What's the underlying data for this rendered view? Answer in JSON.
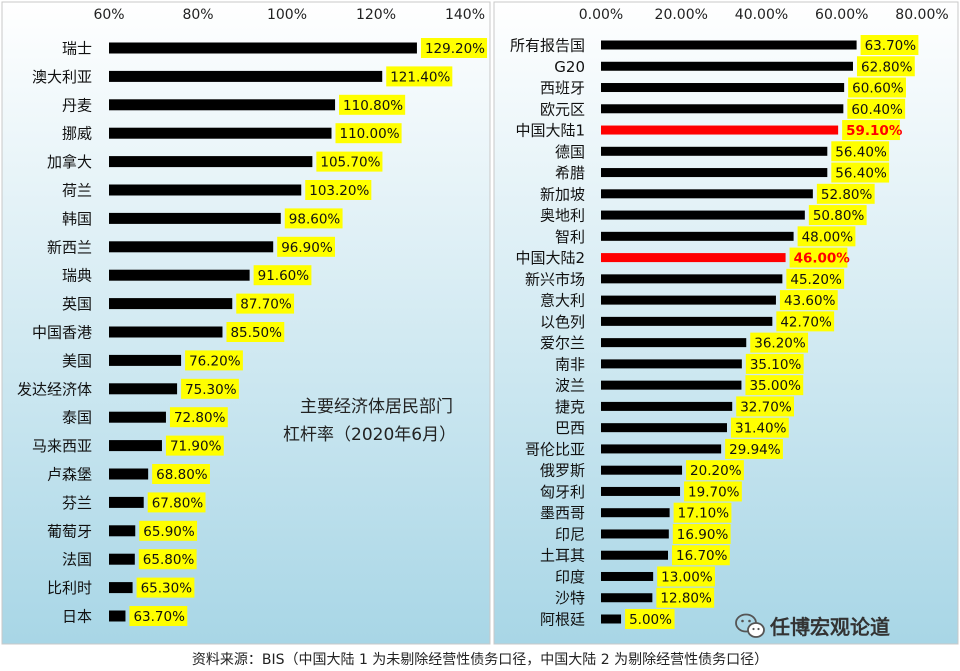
{
  "chart_data": [
    {
      "type": "bar",
      "orientation": "horizontal",
      "title": "主要经济体居民部门杠杆率（2020年6月）",
      "annotation_lines": [
        "主要经济体居民部门",
        "杠杆率（2020年6月）"
      ],
      "xlim": [
        60,
        140
      ],
      "ticks": [
        60,
        80,
        100,
        120,
        140
      ],
      "tick_labels": [
        "60%",
        "80%",
        "100%",
        "120%",
        "140%"
      ],
      "categories": [
        "瑞士",
        "澳大利亚",
        "丹麦",
        "挪威",
        "加拿大",
        "荷兰",
        "韩国",
        "新西兰",
        "瑞典",
        "英国",
        "中国香港",
        "美国",
        "发达经济体",
        "泰国",
        "马来西亚",
        "卢森堡",
        "芬兰",
        "葡萄牙",
        "法国",
        "比利时",
        "日本"
      ],
      "values": [
        129.2,
        121.4,
        110.8,
        110.0,
        105.7,
        103.2,
        98.6,
        96.9,
        91.6,
        87.7,
        85.5,
        76.2,
        75.3,
        72.8,
        71.9,
        68.8,
        67.8,
        65.9,
        65.8,
        65.3,
        63.7
      ],
      "data_labels": [
        "129.20%",
        "121.40%",
        "110.80%",
        "110.00%",
        "105.70%",
        "103.20%",
        "98.60%",
        "96.90%",
        "91.60%",
        "87.70%",
        "85.50%",
        "76.20%",
        "75.30%",
        "72.80%",
        "71.90%",
        "68.80%",
        "67.80%",
        "65.90%",
        "65.80%",
        "65.30%",
        "63.70%"
      ],
      "highlight": []
    },
    {
      "type": "bar",
      "orientation": "horizontal",
      "xlim": [
        0,
        80
      ],
      "ticks": [
        0,
        20,
        40,
        60,
        80
      ],
      "tick_labels": [
        "0.00%",
        "20.00%",
        "40.00%",
        "60.00%",
        "80.00%"
      ],
      "categories": [
        "所有报告国",
        "G20",
        "西班牙",
        "欧元区",
        "中国大陆1",
        "德国",
        "希腊",
        "新加坡",
        "奥地利",
        "智利",
        "中国大陆2",
        "新兴市场",
        "意大利",
        "以色列",
        "爱尔兰",
        "南非",
        "波兰",
        "捷克",
        "巴西",
        "哥伦比亚",
        "俄罗斯",
        "匈牙利",
        "墨西哥",
        "印尼",
        "土耳其",
        "印度",
        "沙特",
        "阿根廷"
      ],
      "values": [
        63.7,
        62.8,
        60.6,
        60.4,
        59.1,
        56.4,
        56.4,
        52.8,
        50.8,
        48.0,
        46.0,
        45.2,
        43.6,
        42.7,
        36.2,
        35.1,
        35.0,
        32.7,
        31.4,
        29.94,
        20.2,
        19.7,
        17.1,
        16.9,
        16.7,
        13.0,
        12.8,
        5.0
      ],
      "data_labels": [
        "63.70%",
        "62.80%",
        "60.60%",
        "60.40%",
        "59.10%",
        "56.40%",
        "56.40%",
        "52.80%",
        "50.80%",
        "48.00%",
        "46.00%",
        "45.20%",
        "43.60%",
        "42.70%",
        "36.20%",
        "35.10%",
        "35.00%",
        "32.70%",
        "31.40%",
        "29.94%",
        "20.20%",
        "19.70%",
        "17.10%",
        "16.90%",
        "16.70%",
        "13.00%",
        "12.80%",
        "5.00%"
      ],
      "highlight": [
        "中国大陆1",
        "中国大陆2"
      ]
    }
  ],
  "colors": {
    "bar": "#000000",
    "bar_highlight": "#ff0000",
    "label_bg": "#ffff00",
    "label_highlight_text": "#ff0000",
    "panel_top": "#ffffff",
    "panel_bottom": "#a8d6e6"
  },
  "source_note": "资料来源：BIS（中国大陆 1 为未剔除经营性债务口径，中国大陆 2 为剔除经营性债务口径）",
  "watermark": "任博宏观论道",
  "watermark_icon": "wechat-icon"
}
